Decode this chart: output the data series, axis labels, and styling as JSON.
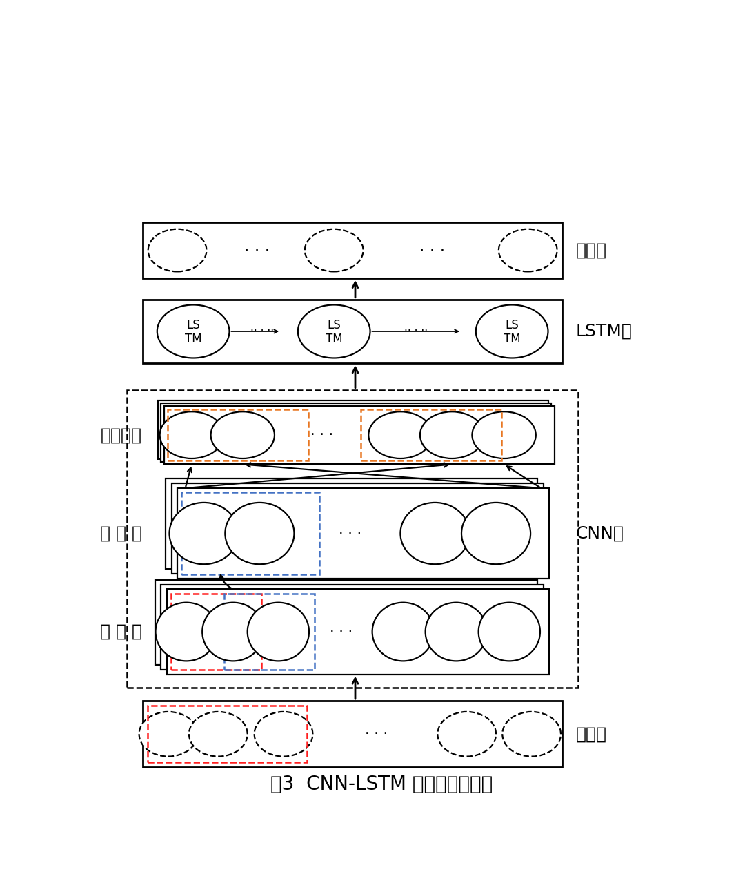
{
  "title": "图3  CNN-LSTM 模型结构示意图",
  "title_fontsize": 20,
  "bg_color": "#ffffff",
  "layer_labels": {
    "output": "输出层",
    "lstm": "LSTM层",
    "fc": "全连接层",
    "pool": "池 化 层",
    "cnn": "CNN层",
    "conv": "卷 积 层",
    "input": "输入层"
  },
  "label_fontsize": 18,
  "lstm_text_fontsize": 12
}
